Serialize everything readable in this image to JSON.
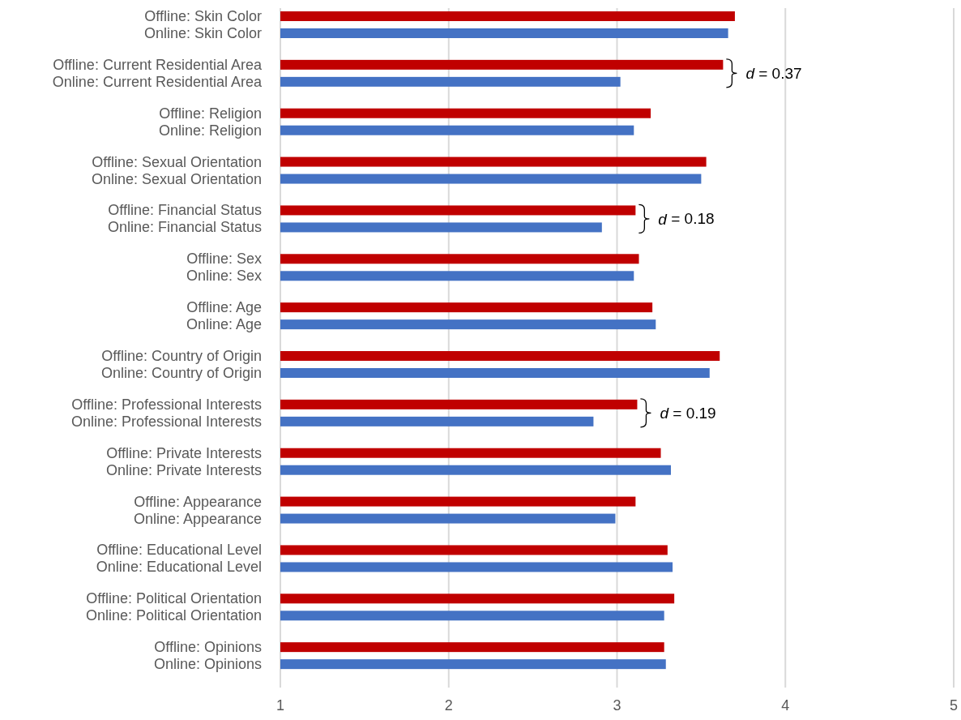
{
  "chart_data": {
    "type": "bar",
    "orientation": "horizontal",
    "categories": [
      "Offline: Skin Color",
      "Online: Skin Color",
      "Offline: Current Residential Area",
      "Online: Current Residential Area",
      "Offline: Religion",
      "Online: Religion",
      "Offline: Sexual Orientation",
      "Online: Sexual Orientation",
      "Offline: Financial Status",
      "Online: Financial Status",
      "Offline: Sex",
      "Online: Sex",
      "Offline: Age",
      "Online: Age",
      "Offline: Country of Origin",
      "Online: Country of Origin",
      "Offline: Professional Interests",
      "Online: Professional Interests",
      "Offline: Private Interests",
      "Online: Private Interests",
      "Offline: Appearance",
      "Online: Appearance",
      "Offline: Educational Level",
      "Online: Educational Level",
      "Offline: Political Orientation",
      "Online: Political Orientation",
      "Offline: Opinions",
      "Online: Opinions"
    ],
    "values": [
      3.7,
      3.66,
      3.63,
      3.02,
      3.2,
      3.1,
      3.53,
      3.5,
      3.11,
      2.91,
      3.13,
      3.1,
      3.21,
      3.23,
      3.61,
      3.55,
      3.12,
      2.86,
      3.26,
      3.32,
      3.11,
      2.99,
      3.3,
      3.33,
      3.34,
      3.28,
      3.28,
      3.29
    ],
    "colors": [
      "#c00000",
      "#4472c4",
      "#c00000",
      "#4472c4",
      "#c00000",
      "#4472c4",
      "#c00000",
      "#4472c4",
      "#c00000",
      "#4472c4",
      "#c00000",
      "#4472c4",
      "#c00000",
      "#4472c4",
      "#c00000",
      "#4472c4",
      "#c00000",
      "#4472c4",
      "#c00000",
      "#4472c4",
      "#c00000",
      "#4472c4",
      "#c00000",
      "#4472c4",
      "#c00000",
      "#4472c4",
      "#c00000",
      "#4472c4"
    ],
    "xlim": [
      1,
      5
    ],
    "xticks": [
      1,
      2,
      3,
      4,
      5
    ],
    "grid": "x",
    "annotations": [
      {
        "text": "d = 0.37",
        "x": 3.63,
        "y": "Offline: Current Residential Area"
      },
      {
        "text": "d = 0.18",
        "x": 3.11,
        "y": "Offline: Financial Status"
      },
      {
        "text": "d = 0.19",
        "x": 3.12,
        "y": "Offline: Professional Interests"
      }
    ]
  }
}
